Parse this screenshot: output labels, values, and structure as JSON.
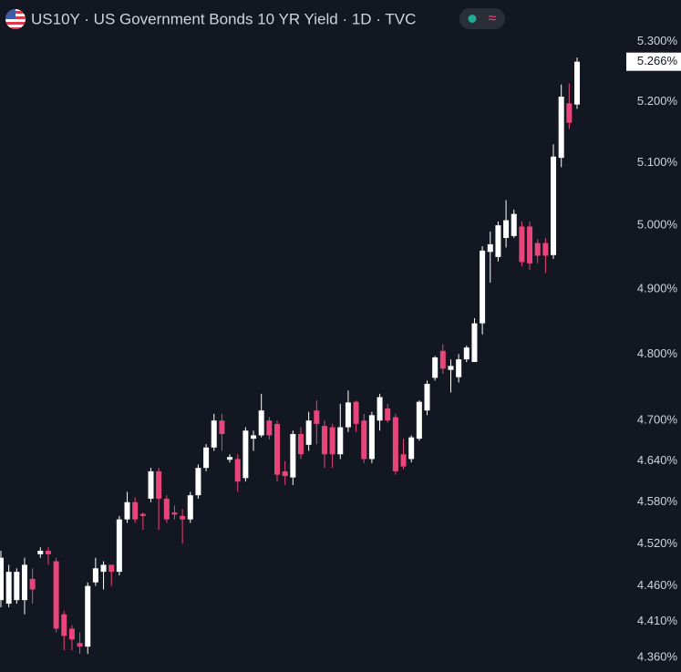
{
  "chart_data": {
    "type": "candlestick",
    "title": "US10Y · US Government Bonds 10 YR Yield · 1D · TVC",
    "log_scale": true,
    "grid": false,
    "up_color": "#ffffff",
    "down_color": "#e8457a",
    "ylim": [
      4.34,
      5.37
    ],
    "yticks": [
      {
        "value": 5.3,
        "label": "5.300%"
      },
      {
        "value": 5.2,
        "label": "5.200%"
      },
      {
        "value": 5.1,
        "label": "5.100%"
      },
      {
        "value": 5.0,
        "label": "5.000%"
      },
      {
        "value": 4.9,
        "label": "4.900%"
      },
      {
        "value": 4.8,
        "label": "4.800%"
      },
      {
        "value": 4.7,
        "label": "4.700%"
      },
      {
        "value": 4.64,
        "label": "4.640%"
      },
      {
        "value": 4.58,
        "label": "4.580%"
      },
      {
        "value": 4.52,
        "label": "4.520%"
      },
      {
        "value": 4.46,
        "label": "4.460%"
      },
      {
        "value": 4.41,
        "label": "4.410%"
      },
      {
        "value": 4.36,
        "label": "4.360%"
      }
    ],
    "last_price": {
      "value": 5.266,
      "label": "5.266%"
    },
    "open": [
      4.44,
      4.435,
      4.44,
      4.44,
      4.47,
      4.505,
      4.51,
      4.495,
      4.42,
      4.4,
      4.38,
      4.375,
      4.465,
      4.48,
      4.49,
      4.48,
      4.555,
      4.58,
      4.563,
      4.585,
      4.625,
      4.585,
      4.565,
      4.56,
      4.555,
      4.59,
      4.63,
      4.66,
      4.7,
      4.642,
      4.643,
      4.615,
      4.673,
      4.678,
      4.7,
      4.695,
      4.625,
      4.616,
      4.68,
      4.664,
      4.715,
      4.692,
      4.69,
      4.65,
      4.69,
      4.728,
      4.7,
      4.643,
      4.7,
      4.718,
      4.705,
      4.65,
      4.643,
      4.673,
      4.715,
      4.764,
      4.805,
      4.776,
      4.765,
      4.792,
      4.788,
      4.847,
      4.958,
      4.95,
      4.98,
      4.983,
      4.998,
      4.998,
      4.972,
      4.972,
      4.953,
      5.108,
      5.197,
      5.195
    ],
    "high": [
      4.51,
      4.49,
      4.485,
      4.5,
      4.485,
      4.515,
      4.515,
      4.5,
      4.425,
      4.405,
      4.395,
      4.465,
      4.5,
      4.495,
      4.49,
      4.56,
      4.595,
      4.587,
      4.565,
      4.63,
      4.63,
      4.59,
      4.575,
      4.57,
      4.595,
      4.635,
      4.665,
      4.71,
      4.71,
      4.65,
      4.65,
      4.69,
      4.685,
      4.74,
      4.705,
      4.7,
      4.64,
      4.685,
      4.69,
      4.713,
      4.73,
      4.7,
      4.695,
      4.725,
      4.745,
      4.73,
      4.71,
      4.713,
      4.74,
      4.725,
      4.71,
      4.673,
      4.678,
      4.73,
      4.76,
      4.797,
      4.815,
      4.792,
      4.8,
      4.813,
      4.855,
      4.967,
      4.99,
      5.006,
      5.04,
      5.025,
      5.006,
      5.006,
      4.978,
      4.98,
      5.13,
      5.228,
      5.23,
      5.273
    ],
    "low": [
      4.43,
      4.43,
      4.435,
      4.42,
      4.435,
      4.5,
      4.49,
      4.395,
      4.37,
      4.37,
      4.365,
      4.365,
      4.46,
      4.455,
      4.46,
      4.475,
      4.55,
      4.55,
      4.54,
      4.58,
      4.54,
      4.55,
      4.555,
      4.52,
      4.55,
      4.585,
      4.625,
      4.655,
      4.655,
      4.638,
      4.595,
      4.61,
      4.655,
      4.675,
      4.672,
      4.61,
      4.605,
      4.605,
      4.643,
      4.655,
      4.665,
      4.63,
      4.63,
      4.643,
      4.683,
      4.683,
      4.637,
      4.637,
      4.685,
      4.697,
      4.62,
      4.628,
      4.638,
      4.67,
      4.708,
      4.76,
      4.77,
      4.742,
      4.757,
      4.788,
      4.788,
      4.83,
      4.91,
      4.943,
      4.965,
      4.98,
      4.935,
      4.93,
      4.94,
      4.925,
      4.947,
      5.093,
      5.155,
      5.188
    ],
    "close": [
      4.5,
      4.48,
      4.48,
      4.49,
      4.455,
      4.51,
      4.505,
      4.4,
      4.39,
      4.385,
      4.375,
      4.46,
      4.485,
      4.49,
      4.48,
      4.555,
      4.58,
      4.555,
      4.56,
      4.625,
      4.585,
      4.555,
      4.562,
      4.555,
      4.59,
      4.63,
      4.66,
      4.7,
      4.68,
      4.646,
      4.61,
      4.685,
      4.678,
      4.715,
      4.678,
      4.62,
      4.618,
      4.68,
      4.65,
      4.7,
      4.695,
      4.65,
      4.65,
      4.69,
      4.727,
      4.695,
      4.643,
      4.708,
      4.735,
      4.7,
      4.625,
      4.632,
      4.675,
      4.728,
      4.755,
      4.795,
      4.778,
      4.782,
      4.792,
      4.81,
      4.847,
      4.96,
      4.97,
      5.0,
      5.008,
      5.018,
      4.942,
      4.94,
      4.952,
      4.952,
      5.11,
      5.208,
      5.165,
      5.266
    ]
  }
}
